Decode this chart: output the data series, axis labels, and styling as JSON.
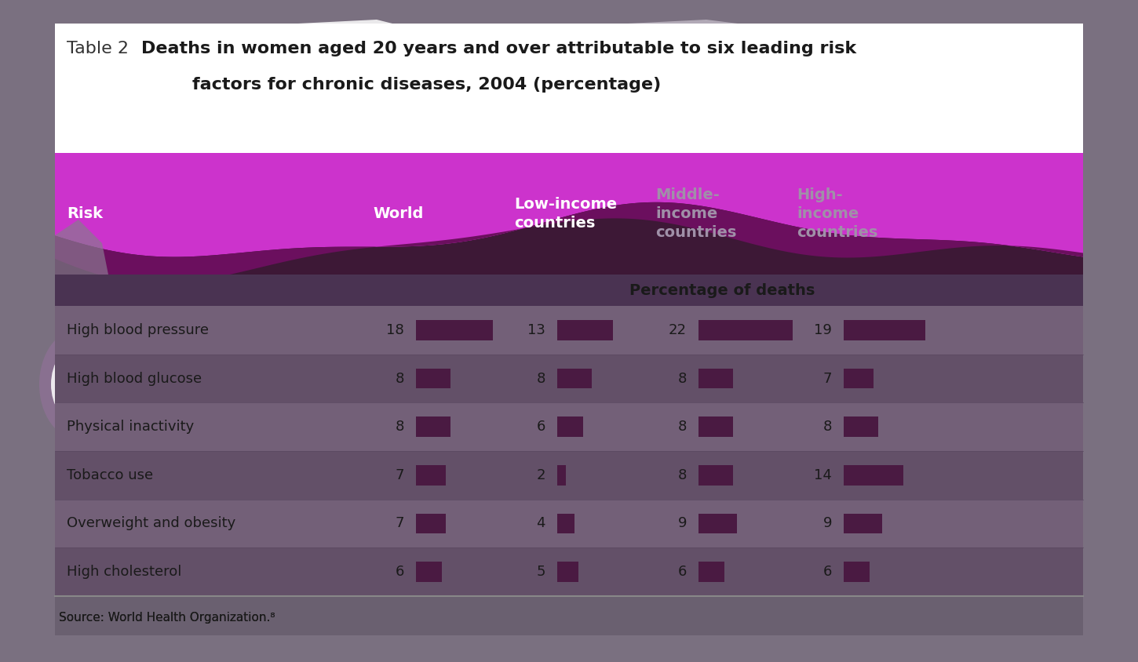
{
  "title_prefix": "Table 2",
  "title_bold": "Deaths in women aged 20 years and over attributable to six leading risk\n         factors for chronic diseases, 2004 (percentage)",
  "columns": [
    "Risk",
    "World",
    "Low-income\ncountries",
    "Middle-\nincome\ncountries",
    "High-\nincome\ncountries"
  ],
  "subheader": "Percentage of deaths",
  "rows": [
    {
      "risk": "High blood pressure",
      "world": 18,
      "low": 13,
      "middle": 22,
      "high": 19
    },
    {
      "risk": "High blood glucose",
      "world": 8,
      "low": 8,
      "middle": 8,
      "high": 7
    },
    {
      "risk": "Physical inactivity",
      "world": 8,
      "low": 6,
      "middle": 8,
      "high": 8
    },
    {
      "risk": "Tobacco use",
      "world": 7,
      "low": 2,
      "middle": 8,
      "high": 14
    },
    {
      "risk": "Overweight and obesity",
      "world": 7,
      "low": 4,
      "middle": 9,
      "high": 9
    },
    {
      "risk": "High cholesterol",
      "world": 6,
      "low": 5,
      "middle": 6,
      "high": 6
    }
  ],
  "header_bg": "#3d1836",
  "wave_bright": "#cc33cc",
  "wave_dark": "#6b0f5e",
  "subheader_bg": "#4a3352",
  "row_bg_even": "#736078",
  "row_bg_odd": "#635068",
  "row_text_color": "#1a1a1a",
  "bar_color": "#4a1a42",
  "bar_max": 22,
  "source_text": "Source: World Health Organization.⁸",
  "outer_bg": "#7a7080",
  "title_bg": "#ffffff",
  "header_col12_color": "#ffffff",
  "header_col34_color": "#a090a8"
}
